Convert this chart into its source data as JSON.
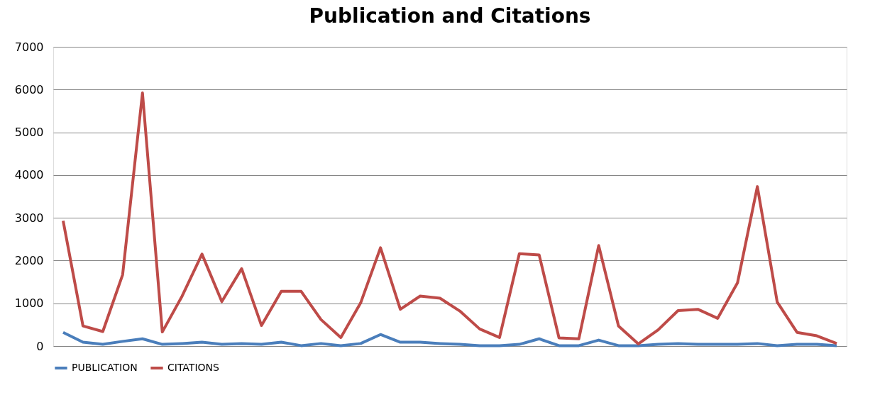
{
  "chart_data": {
    "type": "line",
    "title": "Publication and Citations",
    "categories": [
      null,
      null,
      null,
      null,
      null,
      null,
      null,
      null,
      null,
      null,
      null,
      null,
      null,
      null,
      null,
      null,
      null,
      null,
      null,
      null,
      null,
      null,
      null,
      null,
      null,
      null,
      null,
      null,
      null,
      null,
      null,
      null,
      null,
      null,
      null,
      null,
      null,
      null,
      null,
      null
    ],
    "series": [
      {
        "name": "PUBLICATION",
        "color": "#4a7ebb",
        "values": [
          320,
          90,
          40,
          110,
          170,
          40,
          60,
          90,
          40,
          60,
          40,
          90,
          10,
          60,
          10,
          60,
          270,
          90,
          90,
          60,
          40,
          10,
          10,
          40,
          170,
          10,
          10,
          140,
          10,
          10,
          40,
          60,
          40,
          40,
          40,
          60,
          10,
          40,
          40,
          10
        ]
      },
      {
        "name": "CITATIONS",
        "color": "#be4b48",
        "values": [
          2930,
          470,
          340,
          1670,
          5920,
          330,
          1170,
          2150,
          1040,
          1810,
          480,
          1280,
          1280,
          620,
          200,
          1010,
          2300,
          860,
          1170,
          1120,
          820,
          400,
          200,
          2160,
          2130,
          190,
          170,
          2350,
          470,
          50,
          380,
          830,
          860,
          650,
          1480,
          3730,
          1030,
          320,
          240,
          60
        ]
      }
    ],
    "ylim": [
      0,
      7000
    ],
    "yticks": [
      0,
      1000,
      2000,
      3000,
      4000,
      5000,
      6000,
      7000
    ],
    "grid": "y",
    "legend": "bottom",
    "tick_labels": "y",
    "line_style": "solid",
    "marker": "none"
  }
}
